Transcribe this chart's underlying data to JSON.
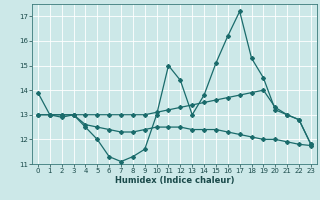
{
  "xlabel": "Humidex (Indice chaleur)",
  "bg_color": "#cce8e8",
  "grid_color": "#ffffff",
  "line_color": "#1a6b6b",
  "xlim": [
    -0.5,
    23.5
  ],
  "ylim": [
    11,
    17.5
  ],
  "yticks": [
    11,
    12,
    13,
    14,
    15,
    16,
    17
  ],
  "xticks": [
    0,
    1,
    2,
    3,
    4,
    5,
    6,
    7,
    8,
    9,
    10,
    11,
    12,
    13,
    14,
    15,
    16,
    17,
    18,
    19,
    20,
    21,
    22,
    23
  ],
  "curve1_x": [
    0,
    1,
    2,
    3,
    4,
    5,
    6,
    7,
    8,
    9,
    10,
    11,
    12,
    13,
    14,
    15,
    16,
    17,
    18,
    19,
    20,
    21,
    22,
    23
  ],
  "curve1_y": [
    13.9,
    13.0,
    12.9,
    13.0,
    12.5,
    12.0,
    11.3,
    11.1,
    11.3,
    11.6,
    13.0,
    15.0,
    14.4,
    13.0,
    13.8,
    15.1,
    16.2,
    17.2,
    15.3,
    14.5,
    13.2,
    13.0,
    12.8,
    11.8
  ],
  "curve2_x": [
    0,
    1,
    2,
    3,
    4,
    5,
    6,
    7,
    8,
    9,
    10,
    11,
    12,
    13,
    14,
    15,
    16,
    17,
    18,
    19,
    20,
    21,
    22,
    23
  ],
  "curve2_y": [
    13.0,
    13.0,
    13.0,
    13.0,
    13.0,
    13.0,
    13.0,
    13.0,
    13.0,
    13.0,
    13.1,
    13.2,
    13.3,
    13.4,
    13.5,
    13.6,
    13.7,
    13.8,
    13.9,
    14.0,
    13.3,
    13.0,
    12.8,
    11.8
  ],
  "curve3_x": [
    0,
    1,
    2,
    3,
    4,
    5,
    6,
    7,
    8,
    9,
    10,
    11,
    12,
    13,
    14,
    15,
    16,
    17,
    18,
    19,
    20,
    21,
    22,
    23
  ],
  "curve3_y": [
    13.0,
    13.0,
    13.0,
    13.0,
    12.6,
    12.5,
    12.4,
    12.3,
    12.3,
    12.4,
    12.5,
    12.5,
    12.5,
    12.4,
    12.4,
    12.4,
    12.3,
    12.2,
    12.1,
    12.0,
    12.0,
    11.9,
    11.8,
    11.75
  ]
}
